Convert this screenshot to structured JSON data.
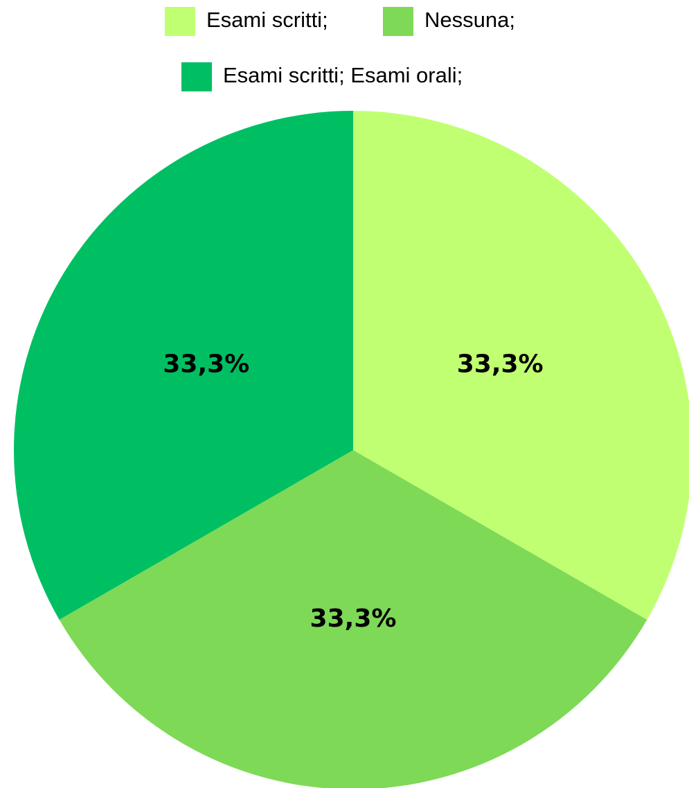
{
  "chart_data": {
    "type": "pie",
    "categories": [
      "Esami scritti;",
      "Nessuna;",
      "Esami scritti; Esami orali;"
    ],
    "values": [
      33.3,
      33.3,
      33.3
    ],
    "value_labels": [
      "33,3%",
      "33,3%",
      "33,3%"
    ],
    "colors": [
      "#c1ff72",
      "#7ed957",
      "#00bf63"
    ],
    "legend": "top"
  }
}
